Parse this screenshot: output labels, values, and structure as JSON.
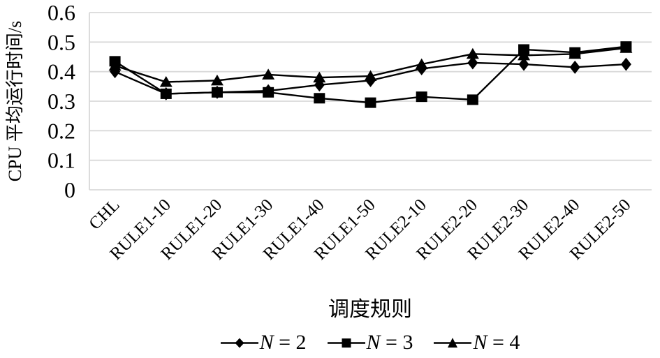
{
  "chart_data": {
    "type": "line",
    "title": "",
    "xlabel": "调度规则",
    "ylabel": "CPU 平均运行时间/s",
    "ylim": [
      0,
      0.6
    ],
    "ytick_step": 0.1,
    "ytick_labels": [
      "0",
      "0.1",
      "0.2",
      "0.3",
      "0.4",
      "0.5",
      "0.6"
    ],
    "grid": "horizontal-only",
    "legend_position": "bottom",
    "categories": [
      "CHL",
      "RULE1-10",
      "RULE1-20",
      "RULE1-30",
      "RULE1-40",
      "RULE1-50",
      "RULE2-10",
      "RULE2-20",
      "RULE2-30",
      "RULE2-40",
      "RULE2-50"
    ],
    "series": [
      {
        "name": "N = 2",
        "var_name": "N",
        "eq_value": " = 2",
        "marker": "diamond",
        "color": "#000000",
        "values": [
          0.4,
          0.325,
          0.33,
          0.335,
          0.355,
          0.37,
          0.41,
          0.43,
          0.425,
          0.415,
          0.425
        ]
      },
      {
        "name": "N = 3",
        "var_name": "N",
        "eq_value": " = 3",
        "marker": "square",
        "color": "#000000",
        "values": [
          0.435,
          0.325,
          0.33,
          0.33,
          0.31,
          0.295,
          0.315,
          0.305,
          0.475,
          0.465,
          0.485
        ]
      },
      {
        "name": "N = 4",
        "var_name": "N",
        "eq_value": " = 4",
        "marker": "triangle",
        "color": "#000000",
        "values": [
          0.42,
          0.365,
          0.37,
          0.39,
          0.38,
          0.385,
          0.425,
          0.46,
          0.455,
          0.46,
          0.48
        ]
      }
    ],
    "colors": {
      "series_line": "#000000",
      "grid": "#d9d9d9",
      "background": "#ffffff",
      "text": "#000000"
    }
  }
}
